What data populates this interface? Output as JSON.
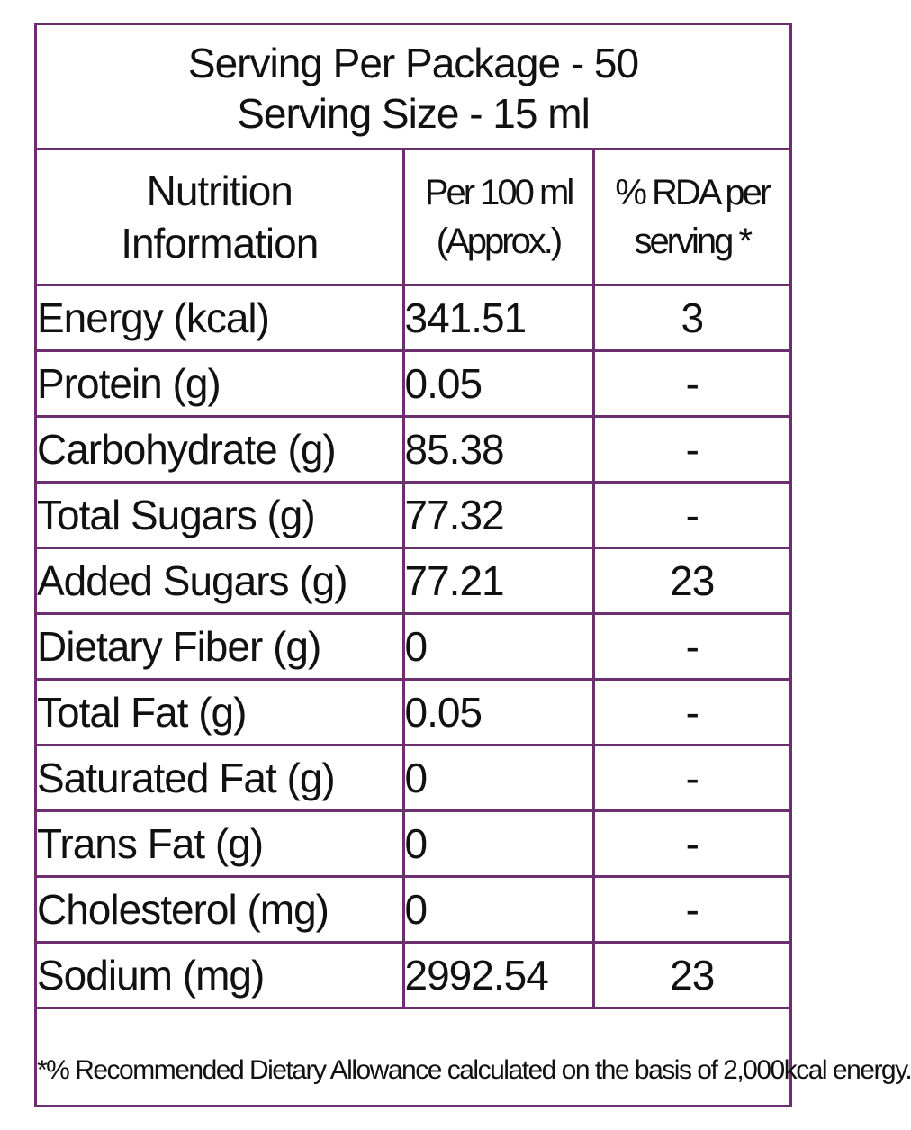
{
  "header": {
    "line1": "Serving Per Package - 50",
    "line2": "Serving Size - 15 ml"
  },
  "columns": {
    "c1_line1": "Nutrition",
    "c1_line2": "Information",
    "c2_line1": "Per 100 ml",
    "c2_line2": "(Approx.)",
    "c3_line1": "% RDA per",
    "c3_line2": "serving *"
  },
  "rows": [
    {
      "name": "Energy (kcal)",
      "per100": "341.51",
      "rda": "3"
    },
    {
      "name": "Protein (g)",
      "per100": "0.05",
      "rda": "-"
    },
    {
      "name": "Carbohydrate (g)",
      "per100": "85.38",
      "rda": "-"
    },
    {
      "name": "Total Sugars (g)",
      "per100": "77.32",
      "rda": "-"
    },
    {
      "name": "Added Sugars (g)",
      "per100": "77.21",
      "rda": "23"
    },
    {
      "name": "Dietary Fiber (g)",
      "per100": "0",
      "rda": "-"
    },
    {
      "name": "Total Fat (g)",
      "per100": "0.05",
      "rda": "-"
    },
    {
      "name": "Saturated Fat (g)",
      "per100": "0",
      "rda": "-"
    },
    {
      "name": "Trans Fat (g)",
      "per100": "0",
      "rda": "-"
    },
    {
      "name": "Cholesterol (mg)",
      "per100": "0",
      "rda": "-"
    },
    {
      "name": "Sodium (mg)",
      "per100": "2992.54",
      "rda": "23"
    }
  ],
  "footnote": "*% Recommended Dietary Allowance calculated on the basis of 2,000kcal energy.",
  "colors": {
    "border": "#6b2f6e",
    "text": "#111111",
    "background": "#ffffff"
  }
}
